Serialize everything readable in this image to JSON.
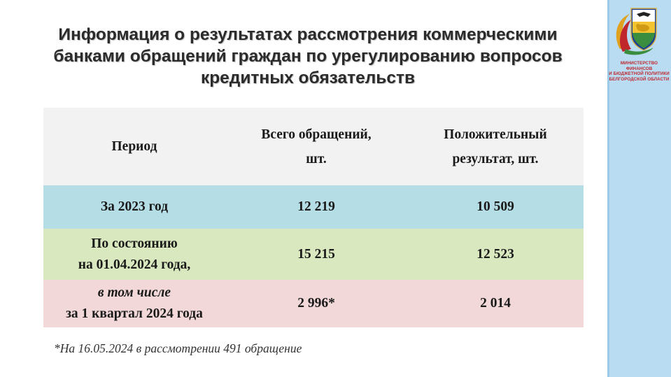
{
  "title": {
    "line1": "Информация о результатах рассмотрения коммерческими",
    "line2": "банками обращений граждан по урегулированию вопросов",
    "line3": "кредитных обязательств"
  },
  "logo": {
    "caption_line1": "МИНИСТЕРСТВО ФИНАНСОВ",
    "caption_line2": "И БЮДЖЕТНОЙ ПОЛИТИКИ",
    "caption_line3": "БЕЛГОРОДСКОЙ ОБЛАСТИ",
    "icon": "belgorod-coat-of-arms-icon"
  },
  "table": {
    "headers": {
      "period": "Период",
      "total_line1": "Всего обращений,",
      "total_line2": "шт.",
      "positive_line1": "Положительный",
      "positive_line2": "результат, шт."
    },
    "rows": [
      {
        "period": "За 2023 год",
        "total": "12 219",
        "positive": "10 509"
      },
      {
        "period_line1": "По состоянию",
        "period_line2": "на 01.04.2024 года,",
        "total": "15 215",
        "positive": "12 523"
      },
      {
        "period_line1": "в том числе",
        "period_line2": "за 1 квартал 2024 года",
        "total": "2 996*",
        "positive": "2 014"
      }
    ]
  },
  "footnote": "*На 16.05.2024 в рассмотрении 491 обращение",
  "colors": {
    "header_bg": "#f2f2f2",
    "row1_bg": "#b5dde6",
    "row2_bg": "#d9e8bf",
    "row3_bg": "#f2d8d8",
    "side_panel": "#b9dcf2",
    "logo_red": "#c0272d"
  }
}
